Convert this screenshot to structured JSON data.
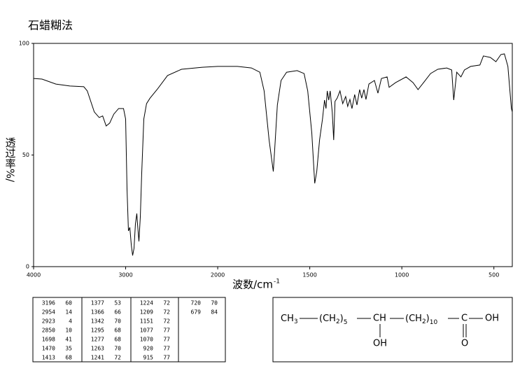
{
  "chart_data": {
    "type": "line",
    "title": "石蜡糊法",
    "y_label": "透过率%/",
    "x_label": "波数/cm",
    "x_label_sup": "-1",
    "xlim": [
      4000,
      400
    ],
    "x_expansion": {
      "at": 2000,
      "factor": 2
    },
    "xticks": [
      4000,
      3000,
      2000,
      1500,
      1000,
      500
    ],
    "ylim": [
      0,
      100
    ],
    "yticks": [
      0,
      50,
      100
    ],
    "color": "#000000",
    "x": [
      4000,
      3909,
      3758,
      3606,
      3455,
      3417,
      3341,
      3288,
      3250,
      3212,
      3174,
      3129,
      3076,
      3023,
      3000,
      2985,
      2970,
      2955,
      2939,
      2924,
      2909,
      2894,
      2879,
      2871,
      2856,
      2841,
      2826,
      2803,
      2773,
      2735,
      2659,
      2545,
      2394,
      2167,
      2000,
      1893,
      1817,
      1771,
      1748,
      1721,
      1698,
      1691,
      1676,
      1656,
      1626,
      1569,
      1531,
      1511,
      1489,
      1473,
      1462,
      1447,
      1431,
      1420,
      1412,
      1405,
      1397,
      1389,
      1378,
      1370,
      1363,
      1351,
      1336,
      1321,
      1305,
      1294,
      1282,
      1271,
      1256,
      1244,
      1229,
      1218,
      1206,
      1195,
      1179,
      1149,
      1130,
      1111,
      1080,
      1069,
      1034,
      977,
      939,
      912,
      882,
      844,
      805,
      756,
      729,
      718,
      702,
      679,
      660,
      626,
      576,
      557,
      519,
      489,
      462,
      443,
      424,
      405,
      400
    ],
    "values": [
      84.3,
      84.0,
      81.8,
      80.9,
      80.6,
      78.7,
      69.3,
      66.8,
      67.5,
      63.0,
      64.3,
      68.3,
      70.8,
      70.8,
      66.1,
      34.8,
      16.0,
      17.6,
      9.7,
      5.0,
      8.2,
      19.1,
      23.8,
      19.1,
      11.3,
      22.3,
      41.1,
      66.1,
      73.0,
      75.5,
      79.3,
      85.6,
      88.4,
      89.3,
      89.7,
      89.7,
      89.0,
      87.1,
      78.7,
      56.7,
      42.6,
      52.0,
      72.4,
      83.4,
      87.1,
      87.8,
      86.5,
      78.7,
      59.9,
      37.3,
      42.6,
      56.7,
      66.1,
      74.6,
      70.8,
      78.7,
      74.6,
      78.7,
      69.3,
      56.7,
      74.0,
      75.5,
      78.7,
      73.0,
      76.2,
      71.8,
      74.9,
      70.8,
      77.1,
      72.4,
      79.3,
      75.5,
      79.3,
      74.9,
      81.8,
      83.4,
      77.7,
      84.3,
      85.0,
      80.3,
      82.4,
      85.0,
      82.4,
      79.3,
      82.4,
      86.5,
      88.4,
      89.0,
      88.1,
      74.6,
      87.1,
      85.0,
      88.1,
      89.7,
      90.3,
      94.4,
      93.7,
      91.8,
      95.0,
      95.3,
      89.7,
      70.8,
      69.3
    ]
  },
  "peak_table": [
    [
      [
        "3196",
        "60"
      ],
      [
        "2954",
        "14"
      ],
      [
        "2923",
        "4"
      ],
      [
        "2850",
        "10"
      ],
      [
        "1698",
        "41"
      ],
      [
        "1470",
        "35"
      ],
      [
        "1413",
        "68"
      ]
    ],
    [
      [
        "1377",
        "53"
      ],
      [
        "1366",
        "66"
      ],
      [
        "1342",
        "70"
      ],
      [
        "1295",
        "68"
      ],
      [
        "1277",
        "68"
      ],
      [
        "1263",
        "70"
      ],
      [
        "1241",
        "72"
      ]
    ],
    [
      [
        "1224",
        "72"
      ],
      [
        "1209",
        "72"
      ],
      [
        "1151",
        "72"
      ],
      [
        "1077",
        "77"
      ],
      [
        "1070",
        "77"
      ],
      [
        "920",
        "77"
      ],
      [
        "915",
        "77"
      ]
    ],
    [
      [
        "720",
        "70"
      ],
      [
        "679",
        "84"
      ]
    ]
  ],
  "structure": {
    "ch3": [
      "CH",
      "3"
    ],
    "ch2a": [
      "(CH",
      "2",
      ")",
      "5"
    ],
    "ch": "CH",
    "oh1": "OH",
    "ch2b": [
      "(CH",
      "2",
      ")",
      "10"
    ],
    "c": "C",
    "oh2": "OH",
    "o": "O"
  }
}
